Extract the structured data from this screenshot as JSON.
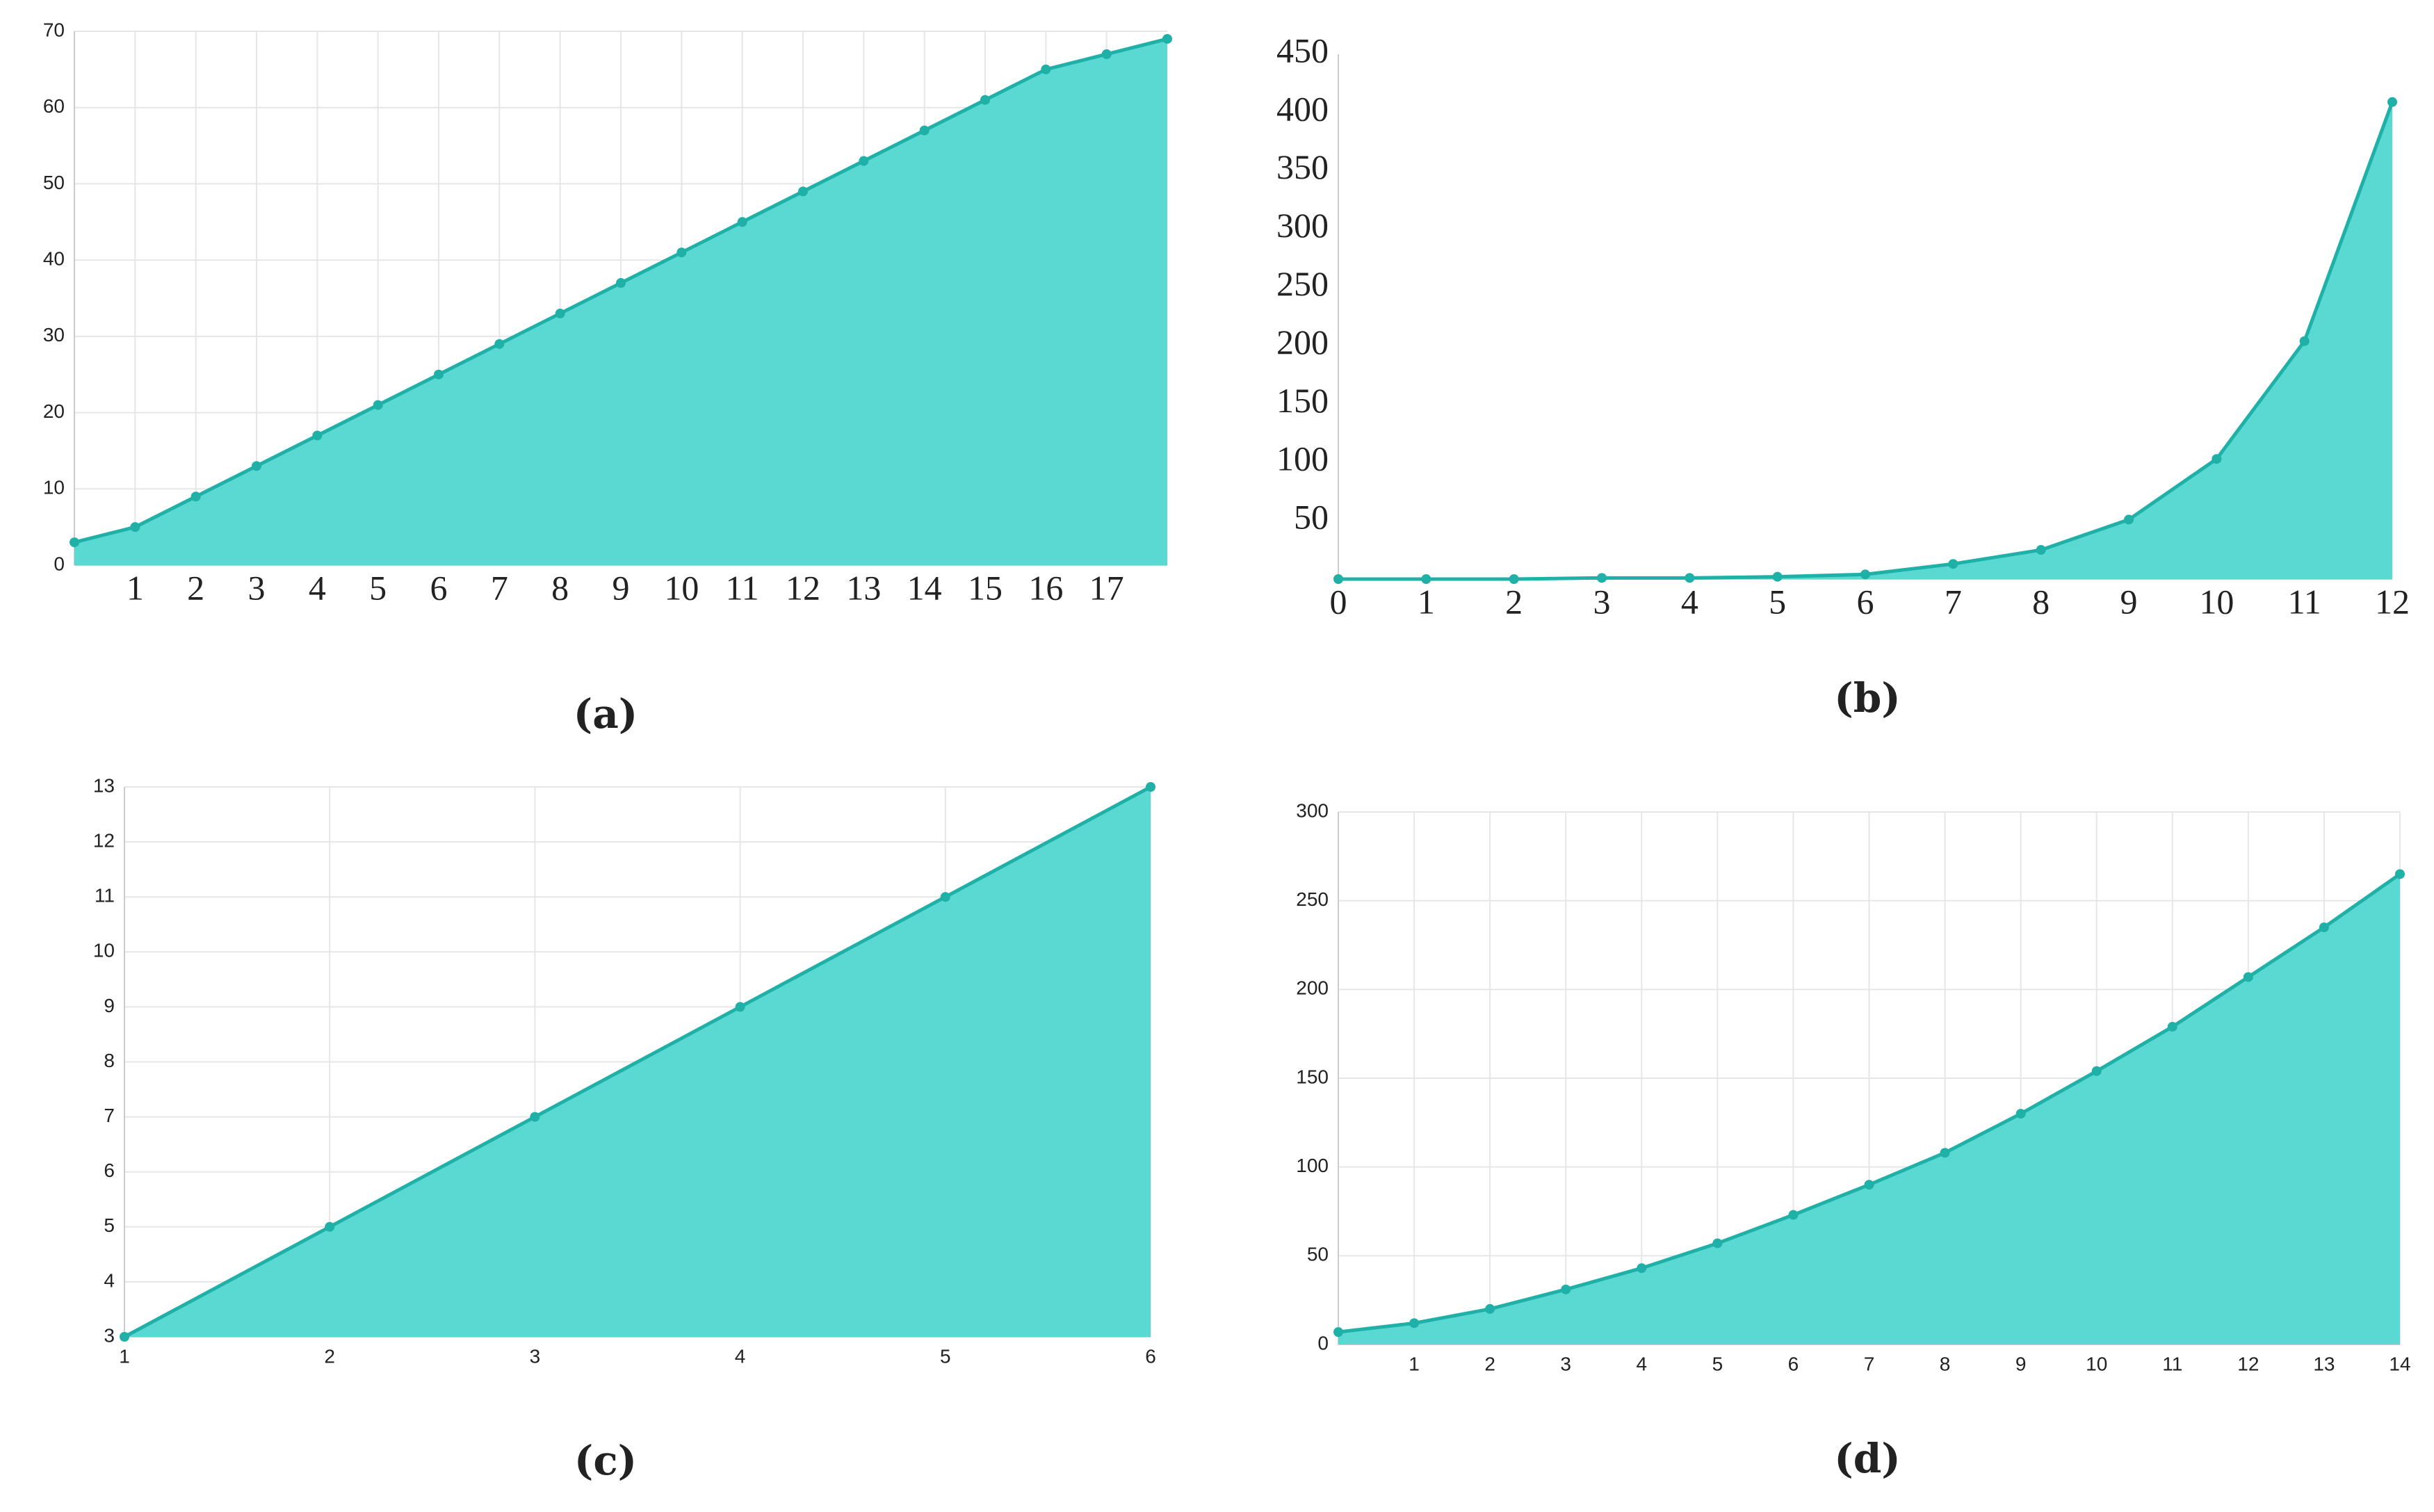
{
  "chart_data": [
    {
      "type": "area",
      "caption": "(a)",
      "color": "#5ad8d2",
      "line_color": "#1fb0a8",
      "grid": true,
      "x": [
        0,
        1,
        2,
        3,
        4,
        5,
        6,
        7,
        8,
        9,
        10,
        11,
        12,
        13,
        14,
        15,
        16,
        17,
        18
      ],
      "values": [
        3,
        5,
        9,
        13,
        17,
        21,
        25,
        29,
        33,
        37,
        41,
        45,
        49,
        53,
        57,
        61,
        65,
        67,
        69
      ],
      "xlim": [
        0,
        18
      ],
      "xticks": [
        1,
        2,
        3,
        4,
        5,
        6,
        7,
        8,
        9,
        10,
        11,
        12,
        13,
        14,
        15,
        16,
        17
      ],
      "ylim": [
        0,
        70
      ],
      "yticks": [
        0,
        10,
        20,
        30,
        40,
        50,
        60,
        70
      ]
    },
    {
      "type": "area",
      "caption": "(b)",
      "color": "#5ad8d2",
      "line_color": "#1fb0a8",
      "grid": false,
      "x": [
        0,
        1,
        2,
        3,
        4,
        5,
        6,
        7,
        8,
        9,
        10,
        11,
        12
      ],
      "values": [
        0,
        0,
        0,
        1,
        1,
        2,
        4,
        13,
        25,
        51,
        103,
        204,
        409
      ],
      "xlim": [
        0,
        12
      ],
      "xticks": [
        0,
        1,
        2,
        3,
        4,
        5,
        6,
        7,
        8,
        9,
        10,
        11,
        12
      ],
      "ylim": [
        0,
        450
      ],
      "yticks": [
        50,
        100,
        150,
        200,
        250,
        300,
        350,
        400,
        450
      ]
    },
    {
      "type": "area",
      "caption": "(c)",
      "color": "#5ad8d2",
      "line_color": "#1fb0a8",
      "grid": true,
      "x": [
        1,
        2,
        3,
        4,
        5,
        6
      ],
      "values": [
        3,
        5,
        7,
        9,
        11,
        13
      ],
      "xlim": [
        1,
        6
      ],
      "xticks": [
        1,
        2,
        3,
        4,
        5,
        6
      ],
      "ylim": [
        3,
        13
      ],
      "yticks": [
        3,
        4,
        5,
        6,
        7,
        8,
        9,
        10,
        11,
        12,
        13
      ]
    },
    {
      "type": "area",
      "caption": "(d)",
      "color": "#5ad8d2",
      "line_color": "#1fb0a8",
      "grid": true,
      "x": [
        0,
        1,
        2,
        3,
        4,
        5,
        6,
        7,
        8,
        9,
        10,
        11,
        12,
        13,
        14
      ],
      "values": [
        7,
        12,
        20,
        31,
        43,
        57,
        73,
        90,
        108,
        130,
        154,
        179,
        207,
        235,
        265
      ],
      "xlim": [
        0,
        14
      ],
      "xticks": [
        1,
        2,
        3,
        4,
        5,
        6,
        7,
        8,
        9,
        10,
        11,
        12,
        13,
        14
      ],
      "ylim": [
        0,
        300
      ],
      "yticks": [
        0,
        50,
        100,
        150,
        200,
        250,
        300
      ]
    }
  ]
}
